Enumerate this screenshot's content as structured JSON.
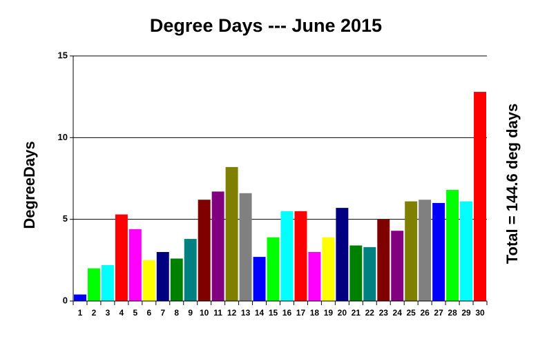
{
  "chart_data": {
    "type": "bar",
    "title": "Degree Days --- June 2015",
    "y_label": "DegreeDays",
    "annotation": "Total = 144.6 deg days",
    "categories": [
      "1",
      "2",
      "3",
      "4",
      "5",
      "6",
      "7",
      "8",
      "9",
      "10",
      "11",
      "12",
      "13",
      "14",
      "15",
      "16",
      "17",
      "18",
      "19",
      "20",
      "21",
      "22",
      "23",
      "24",
      "25",
      "26",
      "27",
      "28",
      "29",
      "30"
    ],
    "values": [
      0.4,
      2.0,
      2.2,
      5.3,
      4.4,
      2.5,
      3.0,
      2.6,
      3.8,
      6.2,
      6.7,
      8.2,
      6.6,
      2.7,
      3.9,
      5.5,
      5.5,
      3.0,
      3.9,
      5.7,
      3.4,
      3.3,
      5.0,
      4.3,
      6.1,
      6.2,
      6.0,
      6.8,
      6.1,
      12.8
    ],
    "colors": [
      "#0000ff",
      "#00ff00",
      "#00ffff",
      "#ff0000",
      "#ff00ff",
      "#ffff00",
      "#000080",
      "#008000",
      "#008080",
      "#800000",
      "#800080",
      "#808000",
      "#808080",
      "#0000ff",
      "#00ff00",
      "#00ffff",
      "#ff0000",
      "#ff00ff",
      "#ffff00",
      "#000080",
      "#008000",
      "#008080",
      "#800000",
      "#800080",
      "#808000",
      "#808080",
      "#0000ff",
      "#00ff00",
      "#00ffff",
      "#ff0000"
    ],
    "ylim": [
      0,
      15
    ],
    "yticks": [
      0,
      5,
      10,
      15
    ],
    "grid": true
  }
}
